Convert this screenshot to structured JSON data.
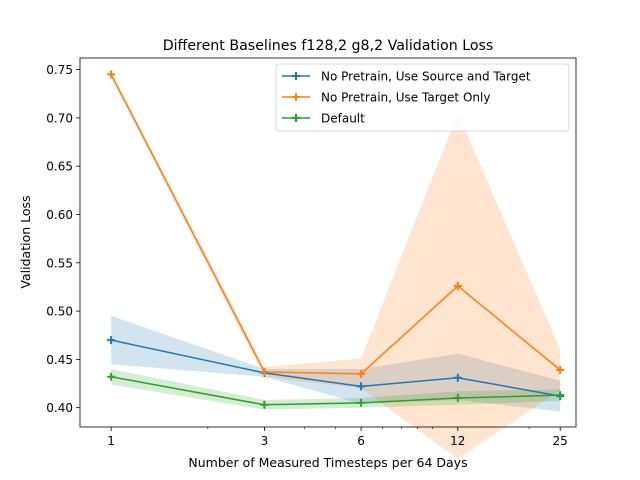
{
  "colors": {
    "No Pretrain, Use Source and Target": "#1f77b4",
    "No Pretrain, Use Target Only": "#ff7f0e",
    "Default": "#2ca02c"
  },
  "chart_data": {
    "type": "line",
    "title": "Different Baselines f128,2 g8,2 Validation Loss",
    "xlabel": "Number of Measured Timesteps per 64 Days",
    "ylabel": "Validation Loss",
    "x_scale": "log",
    "x": [
      1,
      3,
      6,
      12,
      25
    ],
    "xlim": [
      0.8,
      28.0
    ],
    "ylim": [
      0.38,
      0.762
    ],
    "x_ticks": [
      1,
      3,
      6,
      12,
      25
    ],
    "y_ticks": [
      0.4,
      0.45,
      0.5,
      0.55,
      0.6,
      0.65,
      0.7,
      0.75
    ],
    "legend_position": "top-right",
    "grid": false,
    "series": [
      {
        "name": "No Pretrain, Use Source and Target",
        "values": [
          0.47,
          0.436,
          0.422,
          0.431,
          0.412
        ],
        "band_low": [
          0.445,
          0.432,
          0.404,
          0.408,
          0.396
        ],
        "band_high": [
          0.495,
          0.44,
          0.44,
          0.456,
          0.428
        ]
      },
      {
        "name": "No Pretrain, Use Target Only",
        "values": [
          0.745,
          0.437,
          0.435,
          0.526,
          0.439
        ],
        "band_low": [
          0.742,
          0.432,
          0.42,
          0.347,
          0.418
        ],
        "band_high": [
          0.748,
          0.442,
          0.451,
          0.705,
          0.46
        ]
      },
      {
        "name": "Default",
        "values": [
          0.432,
          0.403,
          0.405,
          0.41,
          0.413
        ],
        "band_low": [
          0.424,
          0.398,
          0.4,
          0.403,
          0.407
        ],
        "band_high": [
          0.44,
          0.408,
          0.41,
          0.417,
          0.419
        ]
      }
    ]
  }
}
